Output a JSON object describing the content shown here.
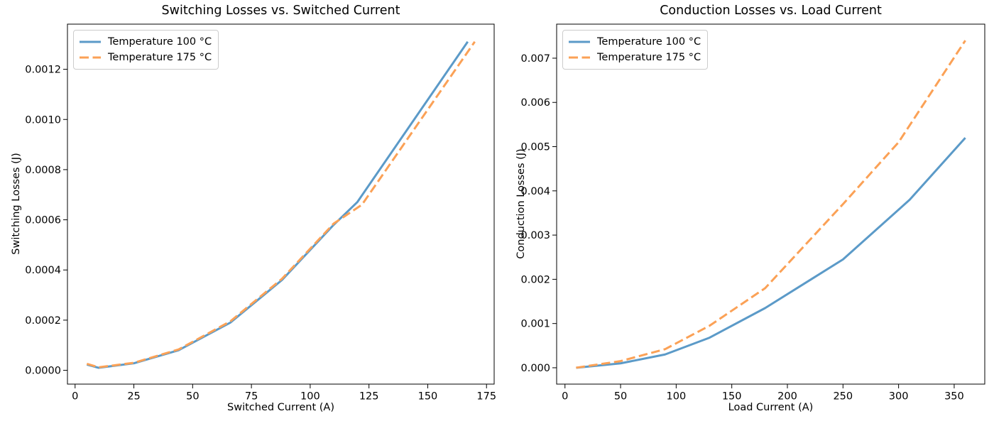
{
  "figure": {
    "background": "#ffffff"
  },
  "colors": {
    "series_100c": "#5b9ac8",
    "series_175c": "#fba156",
    "axis": "#000000",
    "text": "#000000",
    "legend_border": "#cccccc"
  },
  "chart_data": [
    {
      "type": "line",
      "title": "Switching Losses vs. Switched Current",
      "xlabel": "Switched Current (A)",
      "ylabel": "Switching Losses (J)",
      "xlim": [
        -3.25,
        178.25
      ],
      "ylim": [
        -5.5e-05,
        0.00138
      ],
      "grid": false,
      "legend_position": "upper left",
      "xticks": {
        "values": [
          0,
          25,
          50,
          75,
          100,
          125,
          150,
          175
        ],
        "labels": [
          "0",
          "25",
          "50",
          "75",
          "100",
          "125",
          "150",
          "175"
        ]
      },
      "yticks": {
        "values": [
          0.0,
          0.0002,
          0.0004,
          0.0006,
          0.0008,
          0.001,
          0.0012
        ],
        "labels": [
          "0.0000",
          "0.0002",
          "0.0004",
          "0.0006",
          "0.0008",
          "0.0010",
          "0.0012"
        ]
      },
      "series": [
        {
          "name": "Temperature 100 °C",
          "style": "solid",
          "color": "#5b9ac8",
          "x": [
            5,
            10,
            25,
            44,
            66,
            88,
            110,
            120,
            167
          ],
          "y": [
            2.3e-05,
            1e-05,
            2.8e-05,
            8e-05,
            0.00019,
            0.00036,
            0.00058,
            0.00067,
            0.00131
          ]
        },
        {
          "name": "Temperature 175 °C",
          "style": "dashed",
          "color": "#fba156",
          "x": [
            5,
            10,
            25,
            44,
            66,
            88,
            110,
            122,
            170
          ],
          "y": [
            2.6e-05,
            1.2e-05,
            3e-05,
            8.3e-05,
            0.000195,
            0.000365,
            0.000585,
            0.00066,
            0.00131
          ]
        }
      ]
    },
    {
      "type": "line",
      "title": "Conduction Losses vs. Load Current",
      "xlabel": "Load Current (A)",
      "ylabel": "Conduction Losses (J)",
      "xlim": [
        -7.5,
        377.5
      ],
      "ylim": [
        -0.00037,
        0.00777
      ],
      "grid": false,
      "legend_position": "upper left",
      "xticks": {
        "values": [
          0,
          50,
          100,
          150,
          200,
          250,
          300,
          350
        ],
        "labels": [
          "0",
          "50",
          "100",
          "150",
          "200",
          "250",
          "300",
          "350"
        ]
      },
      "yticks": {
        "values": [
          0.0,
          0.001,
          0.002,
          0.003,
          0.004,
          0.005,
          0.006,
          0.007
        ],
        "labels": [
          "0.000",
          "0.001",
          "0.002",
          "0.003",
          "0.004",
          "0.005",
          "0.006",
          "0.007"
        ]
      },
      "series": [
        {
          "name": "Temperature 100 °C",
          "style": "solid",
          "color": "#5b9ac8",
          "x": [
            10,
            50,
            90,
            130,
            180,
            250,
            310,
            360
          ],
          "y": [
            0.0,
            0.0001,
            0.0003,
            0.00068,
            0.00135,
            0.00245,
            0.0038,
            0.0052
          ]
        },
        {
          "name": "Temperature 175 °C",
          "style": "dashed",
          "color": "#fba156",
          "x": [
            10,
            50,
            90,
            130,
            180,
            250,
            300,
            360
          ],
          "y": [
            0.0,
            0.00015,
            0.00042,
            0.00095,
            0.0018,
            0.0037,
            0.0051,
            0.0074
          ]
        }
      ]
    }
  ]
}
